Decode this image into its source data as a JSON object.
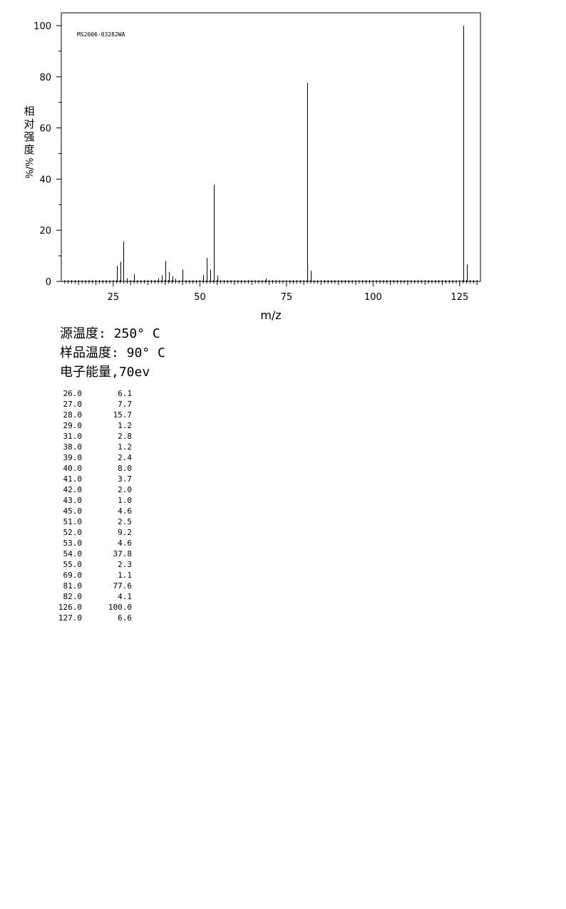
{
  "chart_data": {
    "type": "bar",
    "code": "MS2006-03282WA",
    "xlabel": "m/z",
    "ylabel_chars": [
      "相",
      "对",
      "强",
      "度"
    ],
    "ylabel_unit": "%/%",
    "xlim": [
      10,
      131
    ],
    "ylim": [
      0,
      105
    ],
    "x_ticks": [
      25,
      50,
      75,
      100,
      125
    ],
    "y_ticks": [
      0,
      20,
      40,
      60,
      80,
      100
    ],
    "peaks": [
      {
        "mz": 26,
        "intensity": 6.1
      },
      {
        "mz": 27,
        "intensity": 7.7
      },
      {
        "mz": 28,
        "intensity": 15.7
      },
      {
        "mz": 29,
        "intensity": 1.2
      },
      {
        "mz": 31,
        "intensity": 2.8
      },
      {
        "mz": 38,
        "intensity": 1.2
      },
      {
        "mz": 39,
        "intensity": 2.4
      },
      {
        "mz": 40,
        "intensity": 8.0
      },
      {
        "mz": 41,
        "intensity": 3.7
      },
      {
        "mz": 42,
        "intensity": 2.0
      },
      {
        "mz": 43,
        "intensity": 1.0
      },
      {
        "mz": 45,
        "intensity": 4.6
      },
      {
        "mz": 51,
        "intensity": 2.5
      },
      {
        "mz": 52,
        "intensity": 9.2
      },
      {
        "mz": 53,
        "intensity": 4.6
      },
      {
        "mz": 54,
        "intensity": 37.8
      },
      {
        "mz": 55,
        "intensity": 2.3
      },
      {
        "mz": 69,
        "intensity": 1.1
      },
      {
        "mz": 81,
        "intensity": 77.6
      },
      {
        "mz": 82,
        "intensity": 4.1
      },
      {
        "mz": 126,
        "intensity": 100.0
      },
      {
        "mz": 127,
        "intensity": 6.6
      }
    ]
  },
  "conditions": {
    "source_temp": "源温度: 250° C",
    "sample_temp": "样品温度: 90° C",
    "electron_energy": "电子能量,70ev"
  },
  "peak_table": [
    {
      "mz": "26.0",
      "intensity": "6.1"
    },
    {
      "mz": "27.0",
      "intensity": "7.7"
    },
    {
      "mz": "28.0",
      "intensity": "15.7"
    },
    {
      "mz": "29.0",
      "intensity": "1.2"
    },
    {
      "mz": "31.0",
      "intensity": "2.8"
    },
    {
      "mz": "38.0",
      "intensity": "1.2"
    },
    {
      "mz": "39.0",
      "intensity": "2.4"
    },
    {
      "mz": "40.0",
      "intensity": "8.0"
    },
    {
      "mz": "41.0",
      "intensity": "3.7"
    },
    {
      "mz": "42.0",
      "intensity": "2.0"
    },
    {
      "mz": "43.0",
      "intensity": "1.0"
    },
    {
      "mz": "45.0",
      "intensity": "4.6"
    },
    {
      "mz": "51.0",
      "intensity": "2.5"
    },
    {
      "mz": "52.0",
      "intensity": "9.2"
    },
    {
      "mz": "53.0",
      "intensity": "4.6"
    },
    {
      "mz": "54.0",
      "intensity": "37.8"
    },
    {
      "mz": "55.0",
      "intensity": "2.3"
    },
    {
      "mz": "69.0",
      "intensity": "1.1"
    },
    {
      "mz": "81.0",
      "intensity": "77.6"
    },
    {
      "mz": "82.0",
      "intensity": "4.1"
    },
    {
      "mz": "126.0",
      "intensity": "100.0"
    },
    {
      "mz": "127.0",
      "intensity": "6.6"
    }
  ]
}
